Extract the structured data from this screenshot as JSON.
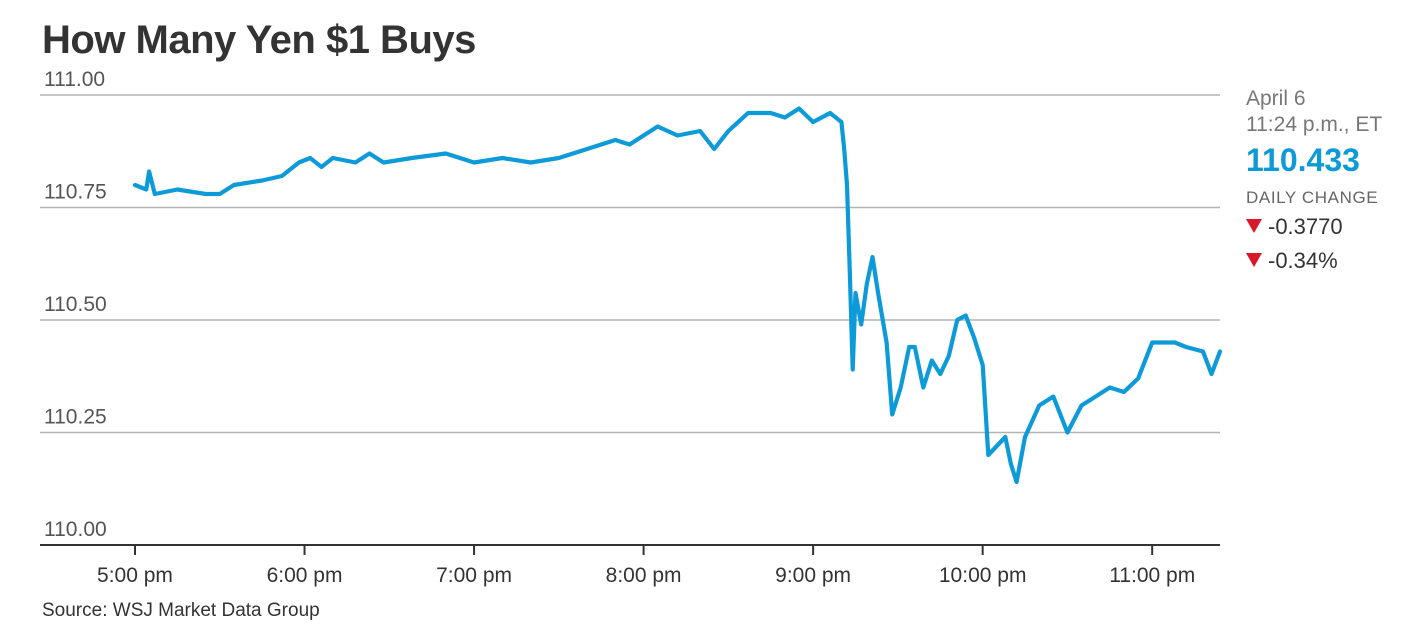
{
  "chart_data": {
    "type": "line",
    "title": "How Many Yen $1 Buys",
    "source": "Source: WSJ Market Data Group",
    "ylim": [
      110.0,
      111.0
    ],
    "yticks": [
      "111.00",
      "110.75",
      "110.50",
      "110.25",
      "110.00"
    ],
    "ytick_values": [
      111.0,
      110.75,
      110.5,
      110.25,
      110.0
    ],
    "xlim": [
      "5:00 pm",
      "11:24 pm"
    ],
    "xticks": [
      "5:00 pm",
      "6:00 pm",
      "7:00 pm",
      "8:00 pm",
      "9:00 pm",
      "10:00 pm",
      "11:00 pm"
    ],
    "xtick_hours": [
      17,
      18,
      19,
      20,
      21,
      22,
      23
    ],
    "grid": "horizontal",
    "series": [
      {
        "color": "#0d9ad8",
        "points": [
          [
            "17:00",
            110.8
          ],
          [
            "17:04",
            110.79
          ],
          [
            "17:05",
            110.83
          ],
          [
            "17:07",
            110.78
          ],
          [
            "17:15",
            110.79
          ],
          [
            "17:25",
            110.78
          ],
          [
            "17:30",
            110.78
          ],
          [
            "17:35",
            110.8
          ],
          [
            "17:45",
            110.81
          ],
          [
            "17:52",
            110.82
          ],
          [
            "17:58",
            110.85
          ],
          [
            "18:02",
            110.86
          ],
          [
            "18:06",
            110.84
          ],
          [
            "18:10",
            110.86
          ],
          [
            "18:18",
            110.85
          ],
          [
            "18:23",
            110.87
          ],
          [
            "18:28",
            110.85
          ],
          [
            "18:38",
            110.86
          ],
          [
            "18:50",
            110.87
          ],
          [
            "19:00",
            110.85
          ],
          [
            "19:10",
            110.86
          ],
          [
            "19:20",
            110.85
          ],
          [
            "19:30",
            110.86
          ],
          [
            "19:40",
            110.88
          ],
          [
            "19:50",
            110.9
          ],
          [
            "19:55",
            110.89
          ],
          [
            "20:05",
            110.93
          ],
          [
            "20:12",
            110.91
          ],
          [
            "20:20",
            110.92
          ],
          [
            "20:25",
            110.88
          ],
          [
            "20:30",
            110.92
          ],
          [
            "20:37",
            110.96
          ],
          [
            "20:45",
            110.96
          ],
          [
            "20:50",
            110.95
          ],
          [
            "20:55",
            110.97
          ],
          [
            "21:00",
            110.94
          ],
          [
            "21:06",
            110.96
          ],
          [
            "21:10",
            110.94
          ],
          [
            "21:11",
            110.88
          ],
          [
            "21:12",
            110.8
          ],
          [
            "21:13",
            110.6
          ],
          [
            "21:14",
            110.39
          ],
          [
            "21:15",
            110.56
          ],
          [
            "21:17",
            110.49
          ],
          [
            "21:19",
            110.58
          ],
          [
            "21:21",
            110.64
          ],
          [
            "21:23",
            110.56
          ],
          [
            "21:26",
            110.45
          ],
          [
            "21:28",
            110.29
          ],
          [
            "21:31",
            110.35
          ],
          [
            "21:34",
            110.44
          ],
          [
            "21:36",
            110.44
          ],
          [
            "21:39",
            110.35
          ],
          [
            "21:42",
            110.41
          ],
          [
            "21:45",
            110.38
          ],
          [
            "21:48",
            110.42
          ],
          [
            "21:51",
            110.5
          ],
          [
            "21:54",
            110.51
          ],
          [
            "21:57",
            110.46
          ],
          [
            "22:00",
            110.4
          ],
          [
            "22:02",
            110.2
          ],
          [
            "22:05",
            110.22
          ],
          [
            "22:08",
            110.24
          ],
          [
            "22:10",
            110.18
          ],
          [
            "22:12",
            110.14
          ],
          [
            "22:15",
            110.24
          ],
          [
            "22:20",
            110.31
          ],
          [
            "22:25",
            110.33
          ],
          [
            "22:30",
            110.25
          ],
          [
            "22:35",
            110.31
          ],
          [
            "22:40",
            110.33
          ],
          [
            "22:45",
            110.35
          ],
          [
            "22:50",
            110.34
          ],
          [
            "22:55",
            110.37
          ],
          [
            "23:00",
            110.45
          ],
          [
            "23:08",
            110.45
          ],
          [
            "23:12",
            110.44
          ],
          [
            "23:18",
            110.43
          ],
          [
            "23:21",
            110.38
          ],
          [
            "23:24",
            110.43
          ]
        ]
      }
    ]
  },
  "sidebar": {
    "date": "April 6",
    "time": "11:24 p.m., ET",
    "price": "110.433",
    "daily_change_label": "DAILY CHANGE",
    "change_abs": "-0.3770",
    "change_pct": "-0.34%",
    "price_color": "#0d9ad8",
    "down_color": "#d7192b"
  }
}
